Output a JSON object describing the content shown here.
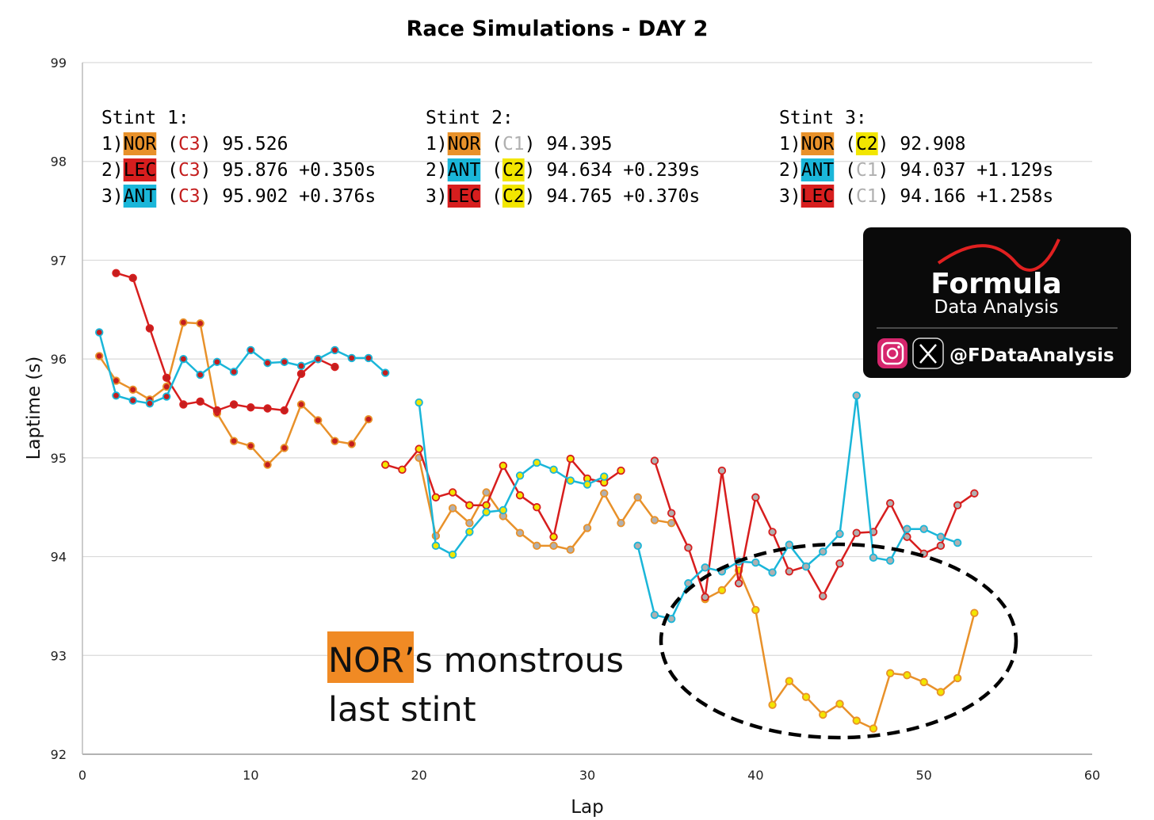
{
  "chart_data": {
    "type": "line",
    "title": "Race Simulations - DAY 2",
    "xlabel": "Lap",
    "ylabel": "Laptime (s)",
    "xlim": [
      0,
      60
    ],
    "ylim": [
      92,
      99
    ],
    "xticks": [
      0,
      10,
      20,
      30,
      40,
      50,
      60
    ],
    "yticks": [
      92,
      93,
      94,
      95,
      96,
      97,
      98,
      99
    ],
    "grid": "horizontal",
    "colors": {
      "NOR": "#e8912a",
      "LEC": "#d71e1e",
      "ANT": "#1ab6d9",
      "C1": "#b0b0b0",
      "C2": "#f2e600",
      "C3": "#c41e1e"
    },
    "series": [
      {
        "name": "NOR",
        "stint": 1,
        "compound": "C3",
        "x": [
          1,
          2,
          3,
          4,
          5,
          6,
          7,
          8,
          9,
          10,
          11,
          12,
          13,
          14,
          15,
          16,
          17
        ],
        "y": [
          96.03,
          95.78,
          95.69,
          95.59,
          95.72,
          96.37,
          96.36,
          95.45,
          95.17,
          95.12,
          94.93,
          95.1,
          95.54,
          95.38,
          95.17,
          95.14,
          95.39
        ]
      },
      {
        "name": "LEC",
        "stint": 1,
        "compound": "C3",
        "x": [
          2,
          3,
          4,
          5,
          6,
          7,
          8,
          9,
          10,
          11,
          12,
          13,
          14,
          15
        ],
        "y": [
          96.87,
          96.82,
          96.31,
          95.81,
          95.54,
          95.57,
          95.48,
          95.54,
          95.51,
          95.5,
          95.48,
          95.85,
          96.0,
          95.92
        ]
      },
      {
        "name": "ANT",
        "stint": 1,
        "compound": "C3",
        "x": [
          1,
          2,
          3,
          4,
          5,
          6,
          7,
          8,
          9,
          10,
          11,
          12,
          13,
          14,
          15,
          16,
          17,
          18
        ],
        "y": [
          96.27,
          95.63,
          95.58,
          95.55,
          95.62,
          96.0,
          95.84,
          95.97,
          95.87,
          96.09,
          95.96,
          95.97,
          95.93,
          96.0,
          96.09,
          96.01,
          96.01,
          95.86
        ]
      },
      {
        "name": "NOR",
        "stint": 2,
        "compound": "C1",
        "x": [
          20,
          21,
          22,
          23,
          24,
          25,
          26,
          27,
          28,
          29,
          30,
          31,
          32,
          33,
          34,
          35
        ],
        "y": [
          95.0,
          94.21,
          94.49,
          94.34,
          94.65,
          94.41,
          94.24,
          94.11,
          94.11,
          94.07,
          94.29,
          94.64,
          94.34,
          94.6,
          94.37,
          94.34
        ]
      },
      {
        "name": "LEC",
        "stint": 2,
        "compound": "C2",
        "x": [
          18,
          19,
          20,
          21,
          22,
          23,
          24,
          25,
          26,
          27,
          28,
          29,
          30,
          31,
          32
        ],
        "y": [
          94.93,
          94.88,
          95.09,
          94.6,
          94.65,
          94.52,
          94.52,
          94.92,
          94.62,
          94.5,
          94.2,
          94.99,
          94.79,
          94.75,
          94.87
        ]
      },
      {
        "name": "ANT",
        "stint": 2,
        "compound": "C2",
        "x": [
          20,
          21,
          22,
          23,
          24,
          25,
          26,
          27,
          28,
          29,
          30,
          31
        ],
        "y": [
          95.56,
          94.11,
          94.02,
          94.25,
          94.45,
          94.47,
          94.82,
          94.95,
          94.88,
          94.77,
          94.73,
          94.81
        ]
      },
      {
        "name": "NOR",
        "stint": 3,
        "compound": "C2",
        "x": [
          37,
          38,
          39,
          40,
          41,
          42,
          43,
          44,
          45,
          46,
          47,
          48,
          49,
          50,
          51,
          52,
          53
        ],
        "y": [
          93.57,
          93.66,
          93.86,
          93.46,
          92.5,
          92.74,
          92.58,
          92.4,
          92.51,
          92.34,
          92.26,
          92.82,
          92.8,
          92.73,
          92.63,
          92.77,
          93.43
        ]
      },
      {
        "name": "LEC",
        "stint": 3,
        "compound": "C1",
        "x": [
          34,
          35,
          36,
          37,
          38,
          39,
          40,
          41,
          42,
          43,
          44,
          45,
          46,
          47,
          48,
          49,
          50,
          51,
          52,
          53
        ],
        "y": [
          94.97,
          94.44,
          94.09,
          93.59,
          94.87,
          93.73,
          94.6,
          94.25,
          93.85,
          93.9,
          93.6,
          93.93,
          94.24,
          94.25,
          94.54,
          94.2,
          94.03,
          94.11,
          94.52,
          94.64
        ]
      },
      {
        "name": "ANT",
        "stint": 3,
        "compound": "C1",
        "x": [
          33,
          34,
          35,
          36,
          37,
          38,
          39,
          40,
          41,
          42,
          43,
          44,
          45,
          46,
          47,
          48,
          49,
          50,
          51,
          52
        ],
        "y": [
          94.11,
          93.41,
          93.37,
          93.73,
          93.89,
          93.85,
          93.95,
          93.94,
          93.84,
          94.12,
          93.9,
          94.05,
          94.23,
          95.63,
          93.99,
          93.96,
          94.28,
          94.28,
          94.2,
          94.14
        ]
      }
    ]
  },
  "stints": [
    {
      "label": "Stint 1:",
      "rows": [
        {
          "pos": "1)",
          "driver": "NOR",
          "tyre": "C3",
          "time": "95.526",
          "gap": ""
        },
        {
          "pos": "2)",
          "driver": "LEC",
          "tyre": "C3",
          "time": "95.876",
          "gap": "+0.350s"
        },
        {
          "pos": "3)",
          "driver": "ANT",
          "tyre": "C3",
          "time": "95.902",
          "gap": "+0.376s"
        }
      ]
    },
    {
      "label": "Stint 2:",
      "rows": [
        {
          "pos": "1)",
          "driver": "NOR",
          "tyre": "C1",
          "time": "94.395",
          "gap": ""
        },
        {
          "pos": "2)",
          "driver": "ANT",
          "tyre": "C2",
          "time": "94.634",
          "gap": "+0.239s"
        },
        {
          "pos": "3)",
          "driver": "LEC",
          "tyre": "C2",
          "time": "94.765",
          "gap": "+0.370s"
        }
      ]
    },
    {
      "label": "Stint 3:",
      "rows": [
        {
          "pos": "1)",
          "driver": "NOR",
          "tyre": "C2",
          "time": "92.908",
          "gap": ""
        },
        {
          "pos": "2)",
          "driver": "ANT",
          "tyre": "C1",
          "time": "94.037",
          "gap": "+1.129s"
        },
        {
          "pos": "3)",
          "driver": "LEC",
          "tyre": "C1",
          "time": "94.166",
          "gap": "+1.258s"
        }
      ]
    }
  ],
  "annotation": {
    "highlight": "NOR",
    "line1_rest": "’s monstrous",
    "line2": "last stint"
  },
  "logo": {
    "brand": "Formula",
    "sub": "Data Analysis",
    "handle": "@FDataAnalysis",
    "icons": [
      "instagram-icon",
      "x-icon"
    ]
  }
}
